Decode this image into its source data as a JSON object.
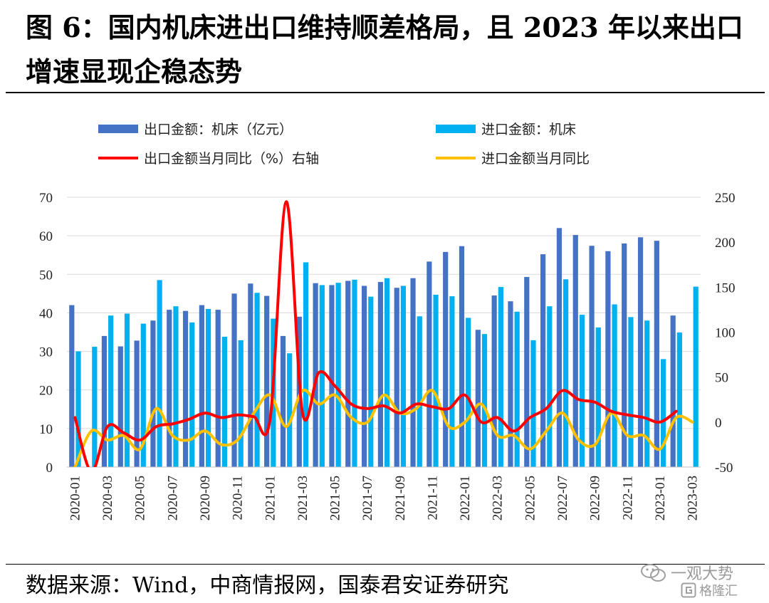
{
  "title": "图 6：国内机床进出口维持顺差格局，且 2023 年以来出口增速显现企稳态势",
  "source": "数据来源：Wind，中商情报网，国泰君安证券研究",
  "watermark": {
    "line1": "一观大势",
    "line2": "格隆汇"
  },
  "chart_data": {
    "type": "bar",
    "categories": [
      "2020-01",
      "2020-02",
      "2020-03",
      "2020-04",
      "2020-05",
      "2020-06",
      "2020-07",
      "2020-08",
      "2020-09",
      "2020-10",
      "2020-11",
      "2020-12",
      "2021-01",
      "2021-02",
      "2021-03",
      "2021-04",
      "2021-05",
      "2021-06",
      "2021-07",
      "2021-08",
      "2021-09",
      "2021-10",
      "2021-11",
      "2021-12",
      "2022-01",
      "2022-02",
      "2022-03",
      "2022-04",
      "2022-05",
      "2022-06",
      "2022-07",
      "2022-08",
      "2022-09",
      "2022-10",
      "2022-11",
      "2022-12",
      "2023-01",
      "2023-02",
      "2023-03"
    ],
    "xtick_labels": [
      "2020-01",
      "2020-03",
      "2020-05",
      "2020-07",
      "2020-09",
      "2020-11",
      "2021-01",
      "2021-03",
      "2021-05",
      "2021-07",
      "2021-09",
      "2021-11",
      "2022-01",
      "2022-03",
      "2022-05",
      "2022-07",
      "2022-09",
      "2022-11",
      "2023-01",
      "2023-03"
    ],
    "series": [
      {
        "name": "出口金额：机床（亿元）",
        "type": "bar",
        "axis": "left",
        "color": "#4472C4",
        "values": [
          42,
          null,
          34,
          31.3,
          32.8,
          38,
          40.8,
          40.5,
          42,
          40.8,
          45,
          47.6,
          44.4,
          34,
          39,
          47.7,
          47.2,
          48.3,
          47,
          48,
          46.5,
          49,
          53.3,
          55.8,
          57.3,
          35.6,
          44.5,
          43,
          49.3,
          55.2,
          62,
          60.2,
          57.4,
          56,
          58,
          59.6,
          58.7,
          39.3,
          null
        ]
      },
      {
        "name": "进口金额：机床",
        "type": "bar",
        "axis": "left",
        "color": "#00B0F0",
        "values": [
          30,
          31.2,
          39.3,
          39.8,
          37.2,
          48.5,
          41.7,
          37.5,
          41,
          33.8,
          32.9,
          45.2,
          38.5,
          29.5,
          53.1,
          47.2,
          47.8,
          48.6,
          44.2,
          49,
          47,
          39.1,
          44.7,
          44.3,
          38.7,
          34.5,
          46.7,
          40.3,
          32.9,
          41.7,
          48.7,
          39.5,
          36.2,
          42.2,
          38.9,
          38,
          28,
          34.9,
          46.8
        ]
      },
      {
        "name": "出口金额当月同比（%）右轴",
        "type": "line",
        "axis": "right",
        "color": "#FF0000",
        "values": [
          5,
          -55,
          -5,
          -12,
          -20,
          -5,
          -2,
          3,
          10,
          5,
          8,
          6,
          3,
          245,
          10,
          55,
          40,
          20,
          15,
          18,
          10,
          20,
          17,
          15,
          30,
          0,
          5,
          -10,
          5,
          15,
          35,
          25,
          22,
          12,
          8,
          5,
          0,
          12,
          null
        ]
      },
      {
        "name": "进口金额当月同比",
        "type": "line",
        "axis": "right",
        "color": "#FFC000",
        "values": [
          -50,
          -10,
          -20,
          -15,
          -30,
          15,
          -15,
          -20,
          -10,
          -25,
          -20,
          10,
          30,
          -5,
          35,
          20,
          30,
          5,
          0,
          30,
          10,
          15,
          35,
          -5,
          0,
          20,
          -15,
          -15,
          -30,
          -10,
          10,
          -20,
          -25,
          10,
          -15,
          -15,
          -30,
          5,
          0
        ]
      }
    ],
    "ylim_left": [
      0,
      70
    ],
    "yticks_left": [
      0,
      10,
      20,
      30,
      40,
      50,
      60,
      70
    ],
    "ylim_right": [
      -50,
      250
    ],
    "yticks_right": [
      -50,
      0,
      50,
      100,
      150,
      200,
      250
    ],
    "grid": true,
    "legend_position": "top"
  }
}
